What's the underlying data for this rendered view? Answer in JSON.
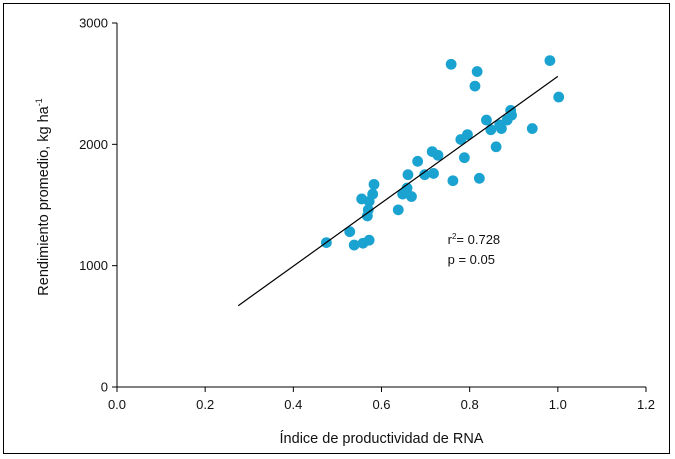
{
  "chart_data": {
    "type": "scatter",
    "title": "",
    "xlabel": "Índice de productividad de RNA",
    "ylabel_main": "Rendimiento promedio, kg ha",
    "ylabel_sup": "-1",
    "xlim": [
      0.0,
      1.2
    ],
    "ylim": [
      0,
      3000
    ],
    "x_ticks": [
      0.0,
      0.2,
      0.4,
      0.6,
      0.8,
      1.0,
      1.2
    ],
    "x_tick_labels": [
      "0.0",
      "0.2",
      "0.4",
      "0.6",
      "0.8",
      "1.0",
      "1.2"
    ],
    "y_ticks": [
      0,
      1000,
      2000,
      3000
    ],
    "y_tick_labels": [
      "0",
      "1000",
      "2000",
      "3000"
    ],
    "grid": false,
    "marker_color": "#1aa3d1",
    "points": [
      {
        "x": 0.475,
        "y": 1190
      },
      {
        "x": 0.528,
        "y": 1280
      },
      {
        "x": 0.538,
        "y": 1170
      },
      {
        "x": 0.558,
        "y": 1185
      },
      {
        "x": 0.572,
        "y": 1210
      },
      {
        "x": 0.555,
        "y": 1550
      },
      {
        "x": 0.568,
        "y": 1410
      },
      {
        "x": 0.57,
        "y": 1460
      },
      {
        "x": 0.572,
        "y": 1530
      },
      {
        "x": 0.58,
        "y": 1590
      },
      {
        "x": 0.583,
        "y": 1670
      },
      {
        "x": 0.638,
        "y": 1460
      },
      {
        "x": 0.648,
        "y": 1590
      },
      {
        "x": 0.658,
        "y": 1640
      },
      {
        "x": 0.66,
        "y": 1750
      },
      {
        "x": 0.668,
        "y": 1570
      },
      {
        "x": 0.682,
        "y": 1860
      },
      {
        "x": 0.698,
        "y": 1750
      },
      {
        "x": 0.715,
        "y": 1940
      },
      {
        "x": 0.718,
        "y": 1760
      },
      {
        "x": 0.728,
        "y": 1910
      },
      {
        "x": 0.758,
        "y": 2660
      },
      {
        "x": 0.762,
        "y": 1700
      },
      {
        "x": 0.78,
        "y": 2040
      },
      {
        "x": 0.788,
        "y": 1890
      },
      {
        "x": 0.795,
        "y": 2080
      },
      {
        "x": 0.812,
        "y": 2480
      },
      {
        "x": 0.817,
        "y": 2600
      },
      {
        "x": 0.822,
        "y": 1720
      },
      {
        "x": 0.838,
        "y": 2200
      },
      {
        "x": 0.848,
        "y": 2120
      },
      {
        "x": 0.86,
        "y": 1980
      },
      {
        "x": 0.868,
        "y": 2160
      },
      {
        "x": 0.872,
        "y": 2130
      },
      {
        "x": 0.885,
        "y": 2200
      },
      {
        "x": 0.893,
        "y": 2280
      },
      {
        "x": 0.895,
        "y": 2240
      },
      {
        "x": 0.942,
        "y": 2130
      },
      {
        "x": 0.982,
        "y": 2690
      },
      {
        "x": 1.002,
        "y": 2390
      }
    ],
    "fit_line": {
      "x": [
        0.275,
        1.0
      ],
      "y": [
        670,
        2560
      ],
      "color": "#000000"
    },
    "annotations": {
      "r2_label": "r",
      "r2_sup": "2",
      "r2_value": "= 0.728",
      "p_text": "p = 0.05",
      "at_x": 0.75,
      "at_y": 1180
    }
  }
}
